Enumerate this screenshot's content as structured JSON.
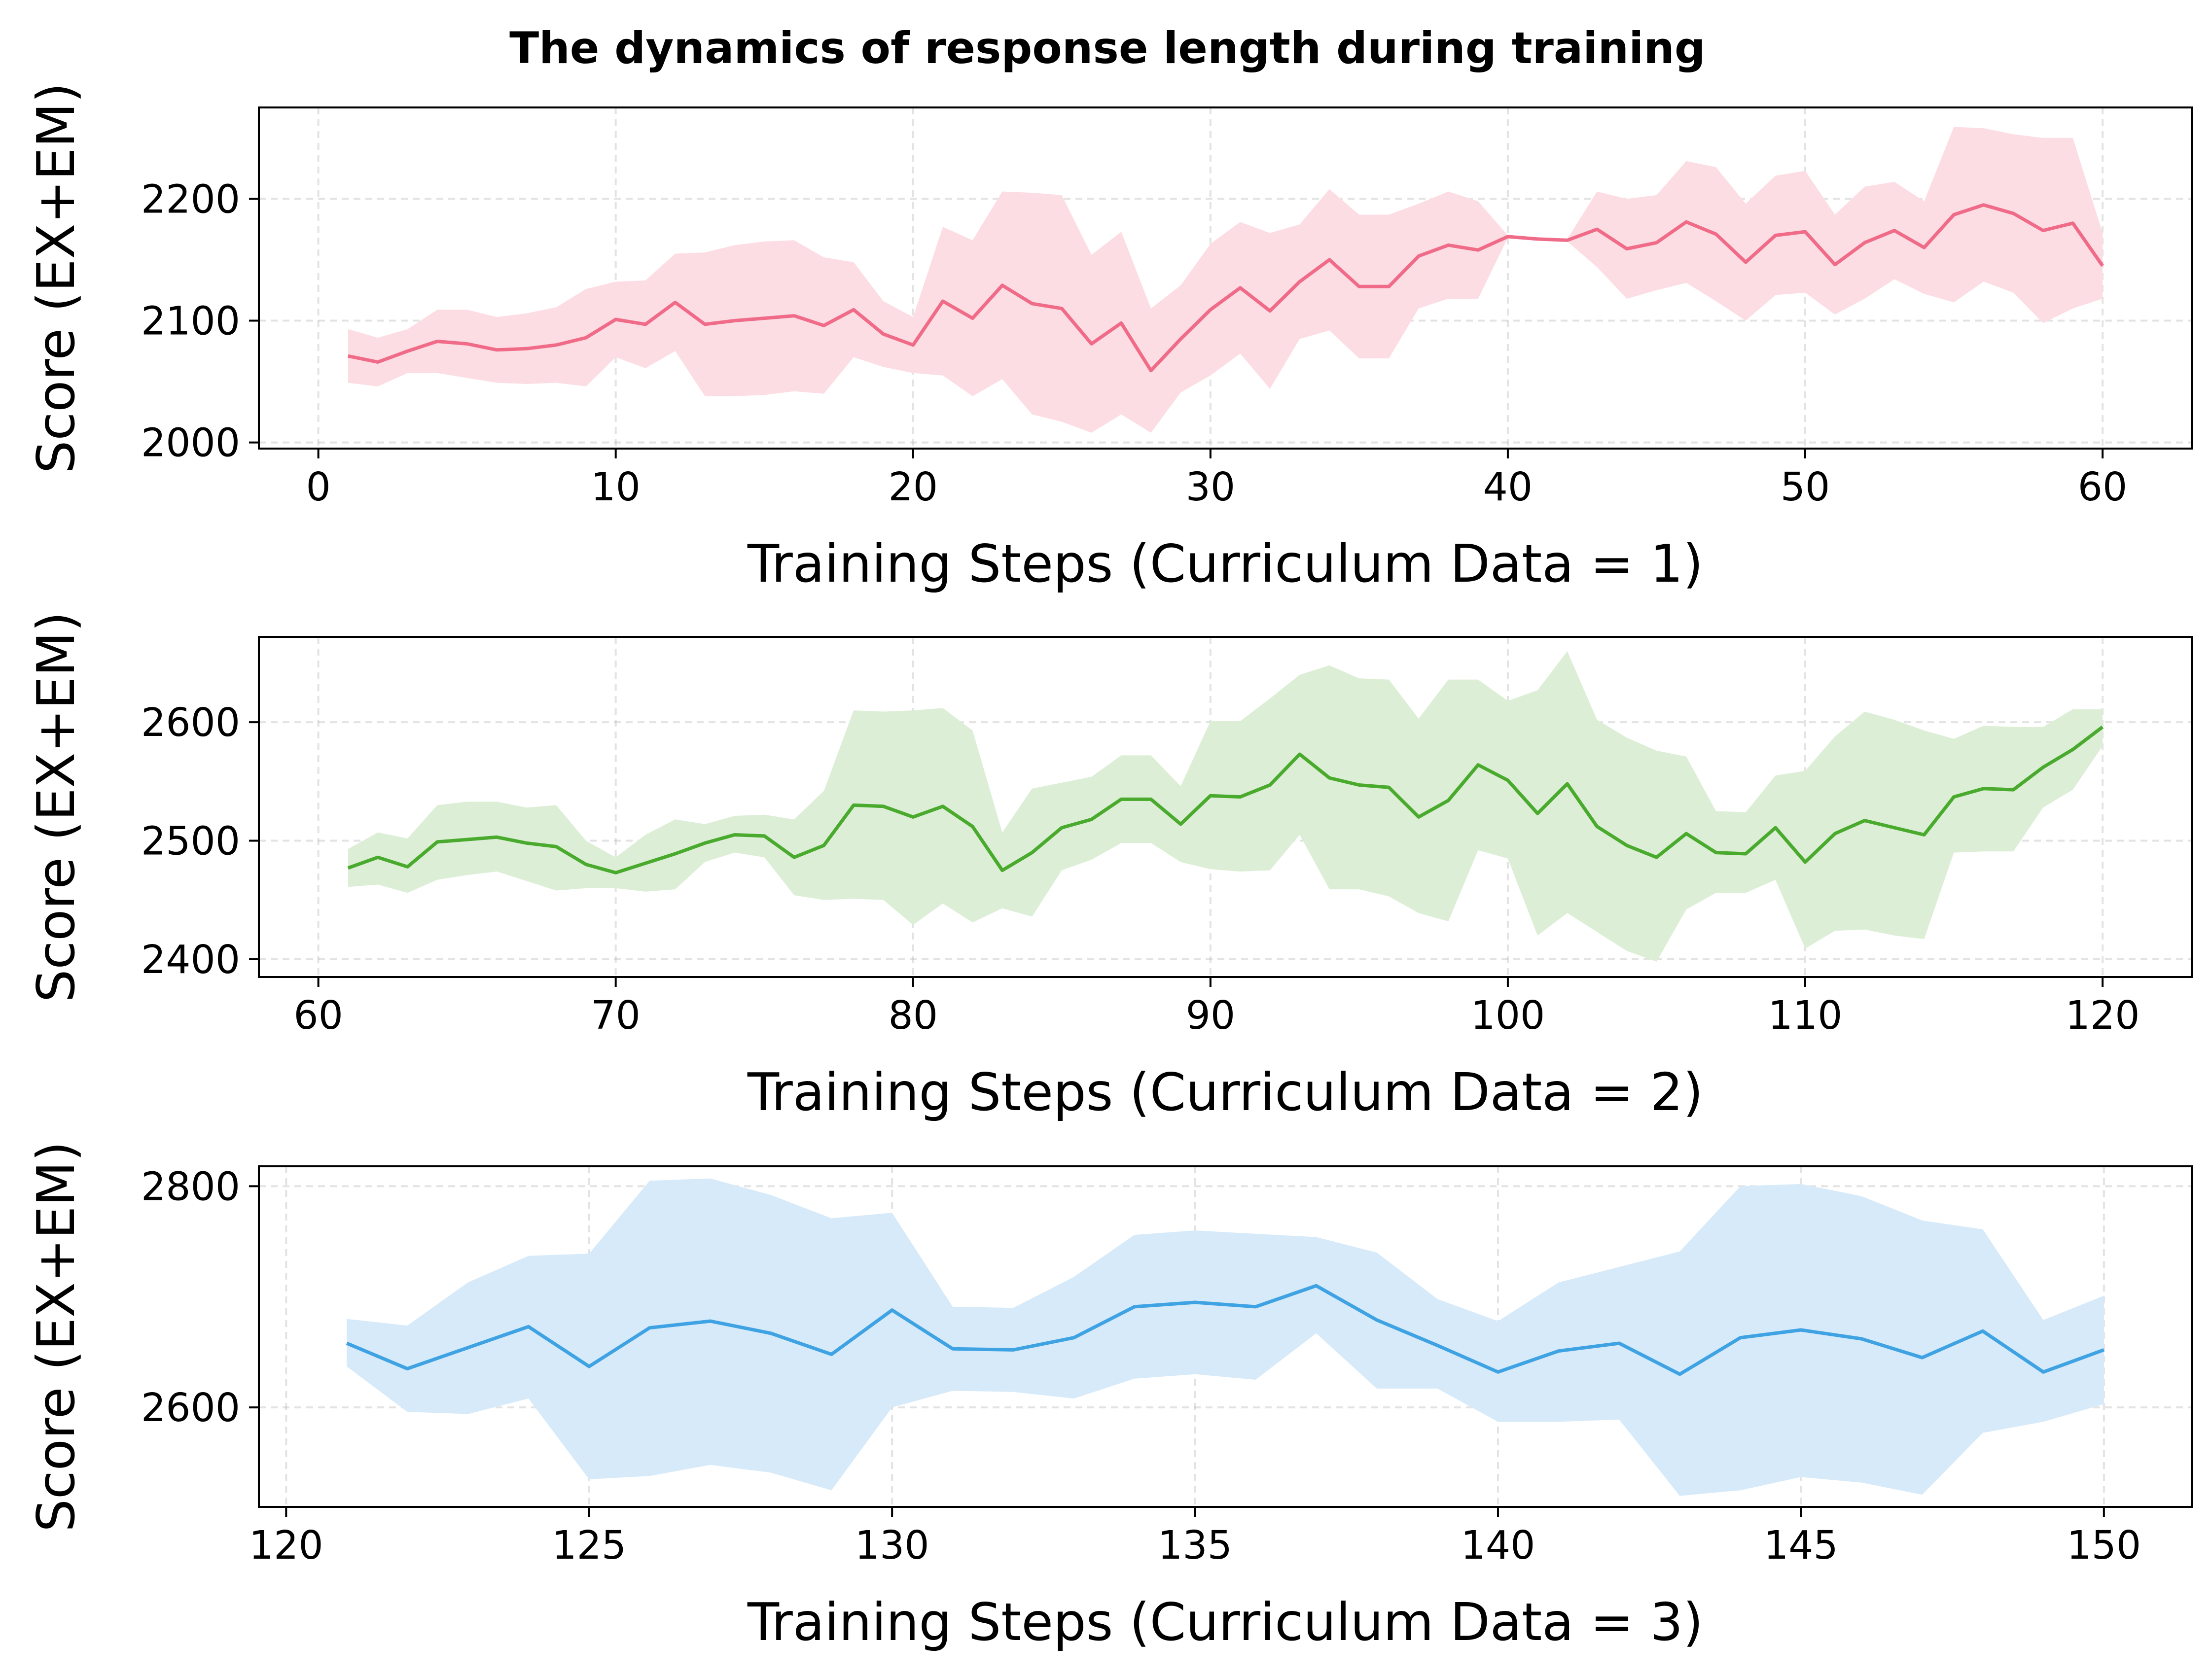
{
  "figure": {
    "title": "The dynamics of response length during training"
  },
  "chart_data": [
    {
      "type": "line",
      "xlabel": "Training Steps (Curriculum Data = 1)",
      "ylabel": "Score (EX+EM)",
      "xlim": [
        -2,
        63
      ],
      "ylim": [
        1995,
        2275
      ],
      "xticks": [
        0,
        10,
        20,
        30,
        40,
        50,
        60
      ],
      "yticks": [
        2000,
        2100,
        2200
      ],
      "grid": true,
      "color": "#f06b88",
      "band_color": "#fddde4",
      "series": [
        {
          "x": [
            1,
            2,
            3,
            4,
            5,
            6,
            7,
            8,
            9,
            10,
            11,
            12,
            13,
            14,
            15,
            16,
            17,
            18,
            19,
            20,
            21,
            22,
            23,
            24,
            25,
            26,
            27,
            28,
            29,
            30,
            31,
            32,
            33,
            34,
            35,
            36,
            37,
            38,
            39,
            40,
            41,
            42,
            43,
            44,
            45,
            46,
            47,
            48,
            49,
            50,
            51,
            52,
            53,
            54,
            55,
            56,
            57,
            58,
            59,
            60
          ],
          "mean": [
            2071,
            2066,
            2075,
            2083,
            2081,
            2076,
            2077,
            2080,
            2086,
            2101,
            2097,
            2115,
            2097,
            2100,
            2102,
            2104,
            2096,
            2109,
            2089,
            2080,
            2116,
            2102,
            2129,
            2114,
            2110,
            2081,
            2098,
            2059,
            2085,
            2109,
            2127,
            2108,
            2132,
            2150,
            2128,
            2128,
            2153,
            2162,
            2158,
            2169,
            2167,
            2166,
            2175,
            2159,
            2164,
            2181,
            2171,
            2148,
            2170,
            2173,
            2146,
            2164,
            2174,
            2160,
            2187,
            2195,
            2188,
            2174,
            2180,
            2145
          ],
          "lower": [
            2049,
            2046,
            2057,
            2057,
            2053,
            2049,
            2048,
            2049,
            2046,
            2070,
            2061,
            2075,
            2038,
            2038,
            2039,
            2042,
            2040,
            2070,
            2062,
            2057,
            2055,
            2038,
            2052,
            2023,
            2017,
            2008,
            2023,
            2008,
            2041,
            2055,
            2073,
            2044,
            2085,
            2092,
            2069,
            2069,
            2110,
            2118,
            2118,
            2168,
            2166,
            2165,
            2144,
            2118,
            2125,
            2131,
            2116,
            2100,
            2121,
            2123,
            2105,
            2118,
            2134,
            2122,
            2115,
            2132,
            2123,
            2098,
            2110,
            2118
          ]
        }
      ],
      "upper": [
        2093,
        2086,
        2093,
        2109,
        2109,
        2103,
        2106,
        2111,
        2126,
        2132,
        2133,
        2155,
        2156,
        2162,
        2165,
        2166,
        2152,
        2148,
        2116,
        2103,
        2177,
        2166,
        2206,
        2205,
        2203,
        2154,
        2173,
        2110,
        2129,
        2163,
        2181,
        2172,
        2179,
        2208,
        2187,
        2187,
        2196,
        2206,
        2198,
        2170,
        2168,
        2167,
        2206,
        2200,
        2203,
        2231,
        2226,
        2196,
        2219,
        2223,
        2187,
        2210,
        2214,
        2198,
        2259,
        2258,
        2253,
        2250,
        2250,
        2172
      ]
    },
    {
      "type": "line",
      "xlabel": "Training Steps (Curriculum Data = 2)",
      "ylabel": "Score (EX+EM)",
      "xlim": [
        58,
        123
      ],
      "ylim": [
        2385,
        2672
      ],
      "xticks": [
        60,
        70,
        80,
        90,
        100,
        110,
        120
      ],
      "yticks": [
        2400,
        2500,
        2600
      ],
      "grid": true,
      "color": "#4aaa2e",
      "band_color": "#dcefd6",
      "series": [
        {
          "x": [
            61,
            62,
            63,
            64,
            65,
            66,
            67,
            68,
            69,
            70,
            71,
            72,
            73,
            74,
            75,
            76,
            77,
            78,
            79,
            80,
            81,
            82,
            83,
            84,
            85,
            86,
            87,
            88,
            89,
            90,
            91,
            92,
            93,
            94,
            95,
            96,
            97,
            98,
            99,
            100,
            101,
            102,
            103,
            104,
            105,
            106,
            107,
            108,
            109,
            110,
            111,
            112,
            113,
            114,
            115,
            116,
            117,
            118,
            119,
            120
          ],
          "mean": [
            2477,
            2486,
            2478,
            2499,
            2501,
            2503,
            2498,
            2495,
            2480,
            2473,
            2481,
            2489,
            2498,
            2505,
            2504,
            2486,
            2496,
            2530,
            2529,
            2520,
            2529,
            2512,
            2475,
            2490,
            2511,
            2518,
            2535,
            2535,
            2514,
            2538,
            2537,
            2547,
            2573,
            2553,
            2547,
            2545,
            2520,
            2534,
            2564,
            2551,
            2523,
            2548,
            2512,
            2496,
            2486,
            2506,
            2490,
            2489,
            2511,
            2482,
            2506,
            2517,
            2511,
            2505,
            2537,
            2544,
            2543,
            2562,
            2577,
            2596
          ],
          "lower": [
            2461,
            2463,
            2456,
            2467,
            2471,
            2474,
            2466,
            2458,
            2460,
            2460,
            2457,
            2459,
            2482,
            2490,
            2486,
            2454,
            2450,
            2451,
            2450,
            2429,
            2447,
            2431,
            2443,
            2436,
            2475,
            2484,
            2498,
            2498,
            2482,
            2476,
            2474,
            2475,
            2505,
            2459,
            2459,
            2453,
            2439,
            2432,
            2492,
            2485,
            2420,
            2439,
            2423,
            2407,
            2398,
            2442,
            2456,
            2456,
            2467,
            2409,
            2424,
            2425,
            2420,
            2417,
            2490,
            2491,
            2491,
            2528,
            2543,
            2580
          ]
        }
      ],
      "upper": [
        2493,
        2507,
        2502,
        2530,
        2533,
        2533,
        2528,
        2530,
        2500,
        2486,
        2505,
        2518,
        2514,
        2521,
        2522,
        2518,
        2542,
        2610,
        2609,
        2610,
        2612,
        2593,
        2507,
        2544,
        2549,
        2554,
        2572,
        2572,
        2546,
        2601,
        2601,
        2620,
        2640,
        2648,
        2637,
        2636,
        2603,
        2636,
        2636,
        2618,
        2627,
        2660,
        2602,
        2587,
        2576,
        2571,
        2525,
        2524,
        2555,
        2559,
        2588,
        2609,
        2602,
        2593,
        2586,
        2597,
        2596,
        2596,
        2611,
        2611
      ]
    },
    {
      "type": "line",
      "xlabel": "Training Steps (Curriculum Data = 3)",
      "ylabel": "Score (EX+EM)",
      "xlim": [
        119.55,
        151.45
      ],
      "ylim": [
        2510,
        2818
      ],
      "xticks": [
        120,
        125,
        130,
        135,
        140,
        145,
        150
      ],
      "yticks": [
        2600,
        2800
      ],
      "grid": true,
      "color": "#3ea2e3",
      "band_color": "#d6eaf9",
      "series": [
        {
          "x": [
            121,
            122,
            123,
            124,
            125,
            126,
            127,
            128,
            129,
            130,
            131,
            132,
            133,
            134,
            135,
            136,
            137,
            138,
            139,
            140,
            141,
            142,
            143,
            144,
            145,
            146,
            147,
            148,
            149,
            150
          ],
          "mean": [
            2658,
            2635,
            2654,
            2673,
            2637,
            2672,
            2678,
            2667,
            2648,
            2688,
            2653,
            2652,
            2663,
            2691,
            2695,
            2691,
            2710,
            2679,
            2656,
            2632,
            2651,
            2658,
            2630,
            2663,
            2670,
            2662,
            2645,
            2669,
            2632,
            2652
          ],
          "lower": [
            2637,
            2596,
            2594,
            2608,
            2535,
            2538,
            2548,
            2541,
            2525,
            2600,
            2615,
            2614,
            2608,
            2626,
            2630,
            2625,
            2667,
            2617,
            2617,
            2587,
            2587,
            2589,
            2520,
            2525,
            2537,
            2532,
            2521,
            2577,
            2587,
            2603
          ]
        }
      ],
      "upper": [
        2680,
        2674,
        2713,
        2737,
        2739,
        2805,
        2807,
        2792,
        2771,
        2776,
        2691,
        2690,
        2718,
        2756,
        2760,
        2757,
        2754,
        2740,
        2698,
        2678,
        2713,
        2727,
        2741,
        2800,
        2802,
        2791,
        2769,
        2761,
        2679,
        2701
      ]
    }
  ]
}
